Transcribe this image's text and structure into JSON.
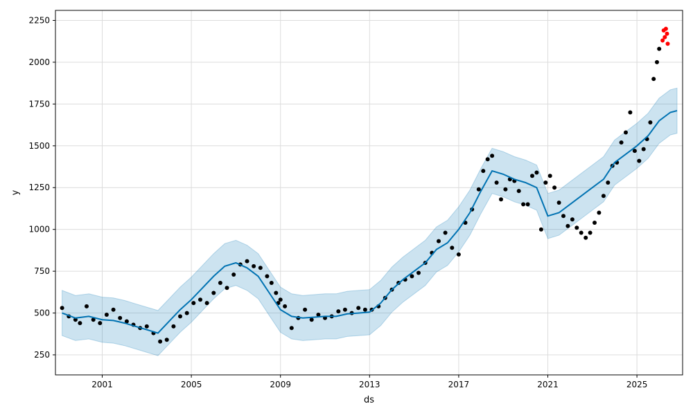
{
  "chart_data": {
    "type": "line",
    "title": "",
    "xlabel": "ds",
    "ylabel": "y",
    "xlim": [
      1998.9,
      2027.05
    ],
    "ylim": [
      130,
      2310
    ],
    "grid": true,
    "x_ticks": [
      2001,
      2005,
      2009,
      2013,
      2017,
      2021,
      2025
    ],
    "y_ticks": [
      250,
      500,
      750,
      1000,
      1250,
      1500,
      1750,
      2000,
      2250
    ],
    "colors": {
      "forecast": "#0072B2",
      "uncertainty": "#0072B2",
      "observed": "#000000",
      "test": "#ff0000"
    },
    "uncertainty_halfwidth": 135,
    "series": [
      {
        "role": "observed",
        "mark": "point",
        "x": [
          1999.2,
          1999.5,
          1999.8,
          2000.0,
          2000.3,
          2000.6,
          2000.9,
          2001.2,
          2001.5,
          2001.8,
          2002.1,
          2002.4,
          2002.7,
          2003.0,
          2003.3,
          2003.6,
          2003.9,
          2004.2,
          2004.5,
          2004.8,
          2005.1,
          2005.4,
          2005.7,
          2006.0,
          2006.3,
          2006.6,
          2006.9,
          2007.2,
          2007.5,
          2007.8,
          2008.1,
          2008.4,
          2008.6,
          2008.8,
          2008.9,
          2009.0,
          2009.2,
          2009.5,
          2009.8,
          2010.1,
          2010.4,
          2010.7,
          2011.0,
          2011.3,
          2011.6,
          2011.9,
          2012.2,
          2012.5,
          2012.8,
          2013.1,
          2013.4,
          2013.7,
          2014.0,
          2014.3,
          2014.6,
          2014.9,
          2015.2,
          2015.5,
          2015.8,
          2016.1,
          2016.4,
          2016.7,
          2017.0,
          2017.3,
          2017.6,
          2017.9,
          2018.1,
          2018.3,
          2018.5,
          2018.7,
          2018.9,
          2019.1,
          2019.3,
          2019.5,
          2019.7,
          2019.9,
          2020.1,
          2020.3,
          2020.5,
          2020.7,
          2020.9,
          2021.1,
          2021.3,
          2021.5,
          2021.7,
          2021.9,
          2022.1,
          2022.3,
          2022.5,
          2022.7,
          2022.9,
          2023.1,
          2023.3,
          2023.5,
          2023.7,
          2023.9,
          2024.1,
          2024.3,
          2024.5,
          2024.7,
          2024.9,
          2025.1,
          2025.3,
          2025.45,
          2025.6,
          2025.75,
          2025.9,
          2026.0
        ],
        "y": [
          530,
          480,
          460,
          440,
          540,
          460,
          440,
          490,
          520,
          470,
          450,
          430,
          410,
          420,
          380,
          330,
          340,
          420,
          480,
          500,
          560,
          580,
          560,
          620,
          680,
          650,
          730,
          790,
          810,
          780,
          770,
          720,
          680,
          620,
          560,
          580,
          540,
          410,
          470,
          520,
          460,
          490,
          470,
          480,
          510,
          520,
          500,
          530,
          520,
          520,
          540,
          590,
          640,
          680,
          700,
          720,
          740,
          800,
          860,
          930,
          980,
          890,
          850,
          1040,
          1120,
          1240,
          1350,
          1420,
          1440,
          1280,
          1180,
          1240,
          1300,
          1290,
          1230,
          1150,
          1150,
          1320,
          1340,
          1000,
          1280,
          1320,
          1250,
          1160,
          1080,
          1020,
          1060,
          1010,
          980,
          950,
          980,
          1040,
          1100,
          1200,
          1280,
          1380,
          1400,
          1520,
          1580,
          1700,
          1470,
          1410,
          1480,
          1540,
          1640,
          1900,
          2000,
          2080
        ]
      },
      {
        "role": "forecast",
        "mark": "line",
        "x": [
          1999.2,
          1999.8,
          2000.4,
          2001.0,
          2001.5,
          2002.0,
          2002.5,
          2003.0,
          2003.5,
          2004.0,
          2004.5,
          2005.0,
          2005.5,
          2006.0,
          2006.5,
          2007.0,
          2007.5,
          2008.0,
          2008.5,
          2009.0,
          2009.5,
          2010.0,
          2010.5,
          2011.0,
          2011.5,
          2012.0,
          2012.5,
          2013.0,
          2013.5,
          2014.0,
          2014.5,
          2015.0,
          2015.5,
          2016.0,
          2016.5,
          2017.0,
          2017.5,
          2018.0,
          2018.5,
          2019.0,
          2019.5,
          2020.0,
          2020.5,
          2021.0,
          2021.5,
          2022.0,
          2022.5,
          2023.0,
          2023.5,
          2024.0,
          2024.5,
          2025.0,
          2025.5,
          2026.0,
          2026.5,
          2026.8
        ],
        "y": [
          500,
          470,
          480,
          460,
          455,
          440,
          420,
          400,
          380,
          450,
          520,
          580,
          650,
          720,
          780,
          800,
          770,
          720,
          620,
          520,
          480,
          470,
          475,
          480,
          480,
          495,
          500,
          505,
          560,
          640,
          700,
          750,
          800,
          880,
          920,
          1000,
          1100,
          1230,
          1350,
          1330,
          1300,
          1280,
          1250,
          1080,
          1100,
          1150,
          1200,
          1250,
          1300,
          1400,
          1450,
          1500,
          1560,
          1650,
          1700,
          1710
        ]
      },
      {
        "role": "test",
        "mark": "point",
        "x": [
          2026.15,
          2026.2,
          2026.25,
          2026.3,
          2026.35,
          2026.38
        ],
        "y": [
          2130,
          2190,
          2150,
          2200,
          2170,
          2110
        ]
      }
    ]
  }
}
